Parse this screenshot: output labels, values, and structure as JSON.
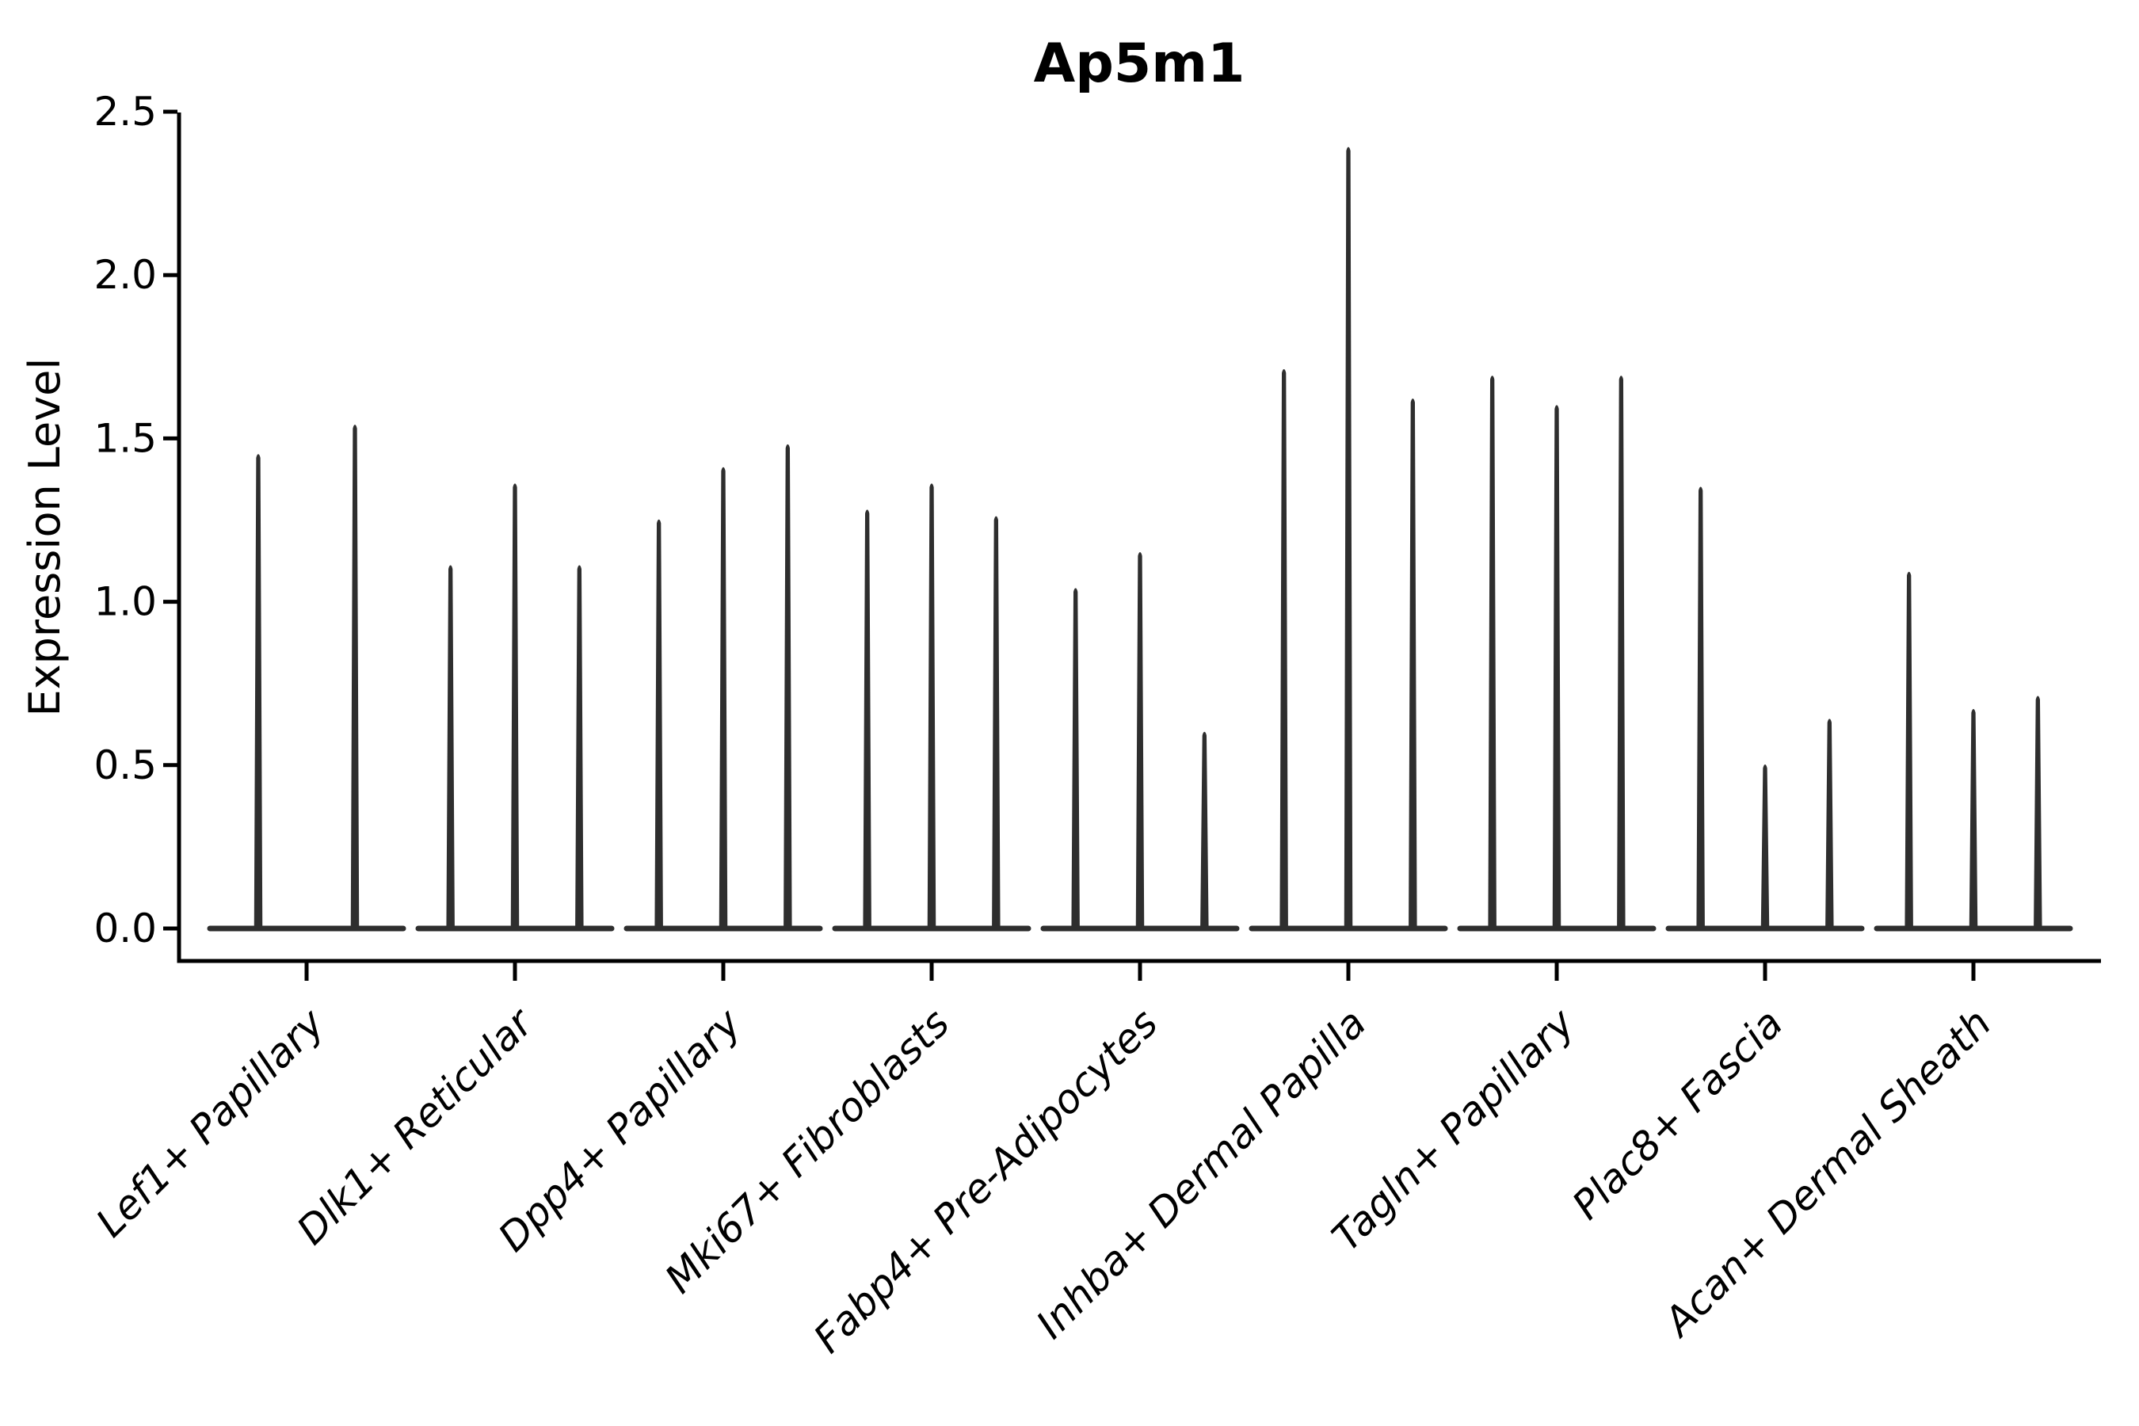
{
  "chart_data": {
    "type": "violin",
    "title": "Ap5m1",
    "ylabel": "Expression Level",
    "xlabel": "",
    "ylim": [
      0,
      2.5
    ],
    "yticks": [
      0.0,
      0.5,
      1.0,
      1.5,
      2.0,
      2.5
    ],
    "ytick_labels": [
      "0.0",
      "0.5",
      "1.0",
      "1.5",
      "2.0",
      "2.5"
    ],
    "grid": false,
    "legend": "none",
    "background": "#ffffff",
    "categories": [
      "Lef1+ Papillary",
      "Dlk1+ Reticular",
      "Dpp4+ Papillary",
      "Mki67+ Fibroblasts",
      "Fabp4+ Pre-Adipocytes",
      "Inhba+ Dermal Papilla",
      "Tagln+ Papillary",
      "Plac8+ Fascia",
      "Acan+ Dermal Sheath"
    ],
    "violins": [
      {
        "category": "Lef1+ Papillary",
        "spike_maxima": [
          1.45,
          1.54
        ]
      },
      {
        "category": "Dlk1+ Reticular",
        "spike_maxima": [
          1.11,
          1.36,
          1.11
        ]
      },
      {
        "category": "Dpp4+ Papillary",
        "spike_maxima": [
          1.25,
          1.41,
          1.48
        ]
      },
      {
        "category": "Mki67+ Fibroblasts",
        "spike_maxima": [
          1.28,
          1.36,
          1.26
        ]
      },
      {
        "category": "Fabp4+ Pre-Adipocytes",
        "spike_maxima": [
          1.04,
          1.15,
          0.6
        ]
      },
      {
        "category": "Inhba+ Dermal Papilla",
        "spike_maxima": [
          1.71,
          2.39,
          1.62
        ]
      },
      {
        "category": "Tagln+ Papillary",
        "spike_maxima": [
          1.69,
          1.6,
          1.69
        ]
      },
      {
        "category": "Plac8+ Fascia",
        "spike_maxima": [
          1.35,
          0.5,
          0.64
        ]
      },
      {
        "category": "Acan+ Dermal Sheath",
        "spike_maxima": [
          1.09,
          0.67,
          0.71
        ]
      }
    ],
    "colors": {
      "violin": "#2e2e2e",
      "axis": "#000000",
      "text": "#000000"
    }
  }
}
